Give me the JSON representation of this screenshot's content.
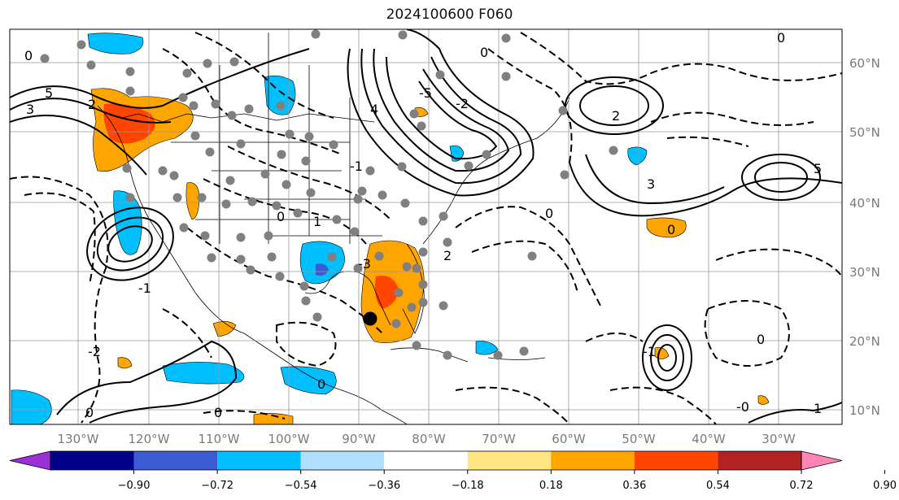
{
  "title": "2024100600 F060",
  "map": {
    "lat_labels": [
      "60°N",
      "50°N",
      "40°N",
      "30°N",
      "20°N",
      "10°N"
    ],
    "lon_labels": [
      "130°W",
      "120°W",
      "110°W",
      "100°W",
      "90°W",
      "80°W",
      "70°W",
      "60°W",
      "50°W",
      "40°W",
      "30°W"
    ],
    "contour_labels": [
      "0",
      "2",
      "5",
      "3",
      "0",
      "-1",
      "-2",
      "4",
      "-5",
      "3",
      "5",
      "0",
      "2",
      "1",
      "-1",
      "-2",
      "0",
      "-3",
      "2",
      "0",
      "0",
      "-1",
      "0",
      "1",
      "0",
      "-0",
      "0",
      "0"
    ]
  },
  "colorbar": {
    "ticks": [
      "−0.90",
      "−0.72",
      "−0.54",
      "−0.36",
      "−0.18",
      "0.18",
      "0.36",
      "0.54",
      "0.72",
      "0.90"
    ],
    "colors": [
      "#9b30d6",
      "#00008b",
      "#3a5bd1",
      "#00bfff",
      "#b0e0ff",
      "#ffffff",
      "#ffe680",
      "#ffa500",
      "#ff4500",
      "#b22222",
      "#ff85b5"
    ]
  },
  "colors": {
    "gridline": "#9a9a9a",
    "coast": "#000000",
    "marker": "#808080",
    "storm_center": "#000000"
  }
}
